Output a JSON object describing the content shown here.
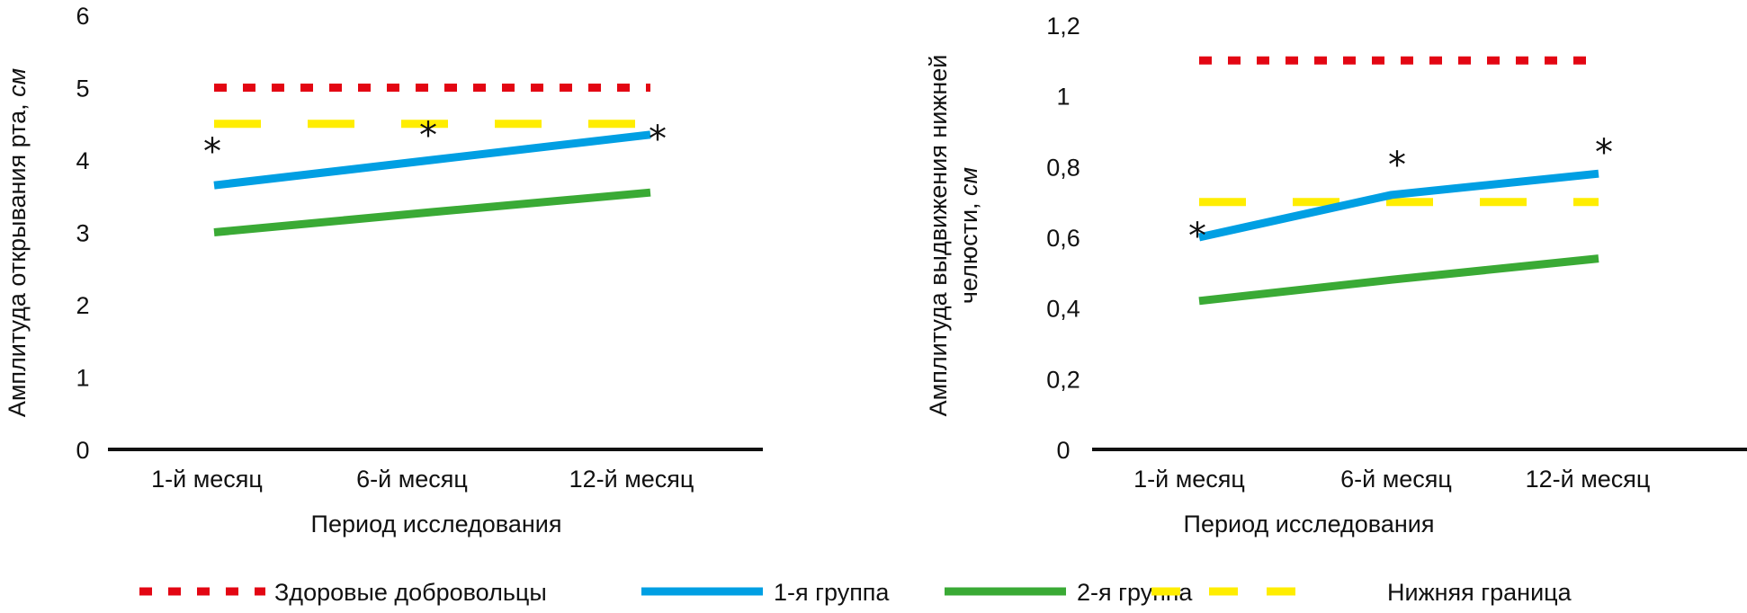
{
  "colors": {
    "healthy": "#e30613",
    "group1": "#009fe3",
    "group2": "#3aaa35",
    "lower": "#ffed00",
    "axis": "#111111"
  },
  "legend": {
    "position": "bottom",
    "items": [
      {
        "key": "healthy",
        "label": "Здоровые добровольцы",
        "style": "dotted"
      },
      {
        "key": "group1",
        "label": "1-я группа",
        "style": "solid"
      },
      {
        "key": "group2",
        "label": "2-я группа",
        "style": "solid"
      },
      {
        "key": "lower",
        "label": "Нижняя граница",
        "style": "dashed"
      }
    ]
  },
  "chart_data": [
    {
      "type": "line",
      "title": "",
      "xlabel": "Период исследования",
      "ylabel": "Амплитуда открывания рта, ",
      "ylabel_unit": "см",
      "categories": [
        "1-й месяц",
        "6-й месяц",
        "12-й месяц"
      ],
      "ylim": [
        0,
        6
      ],
      "yticks": [
        0,
        1,
        2,
        3,
        4,
        5,
        6
      ],
      "ytick_labels": [
        "0",
        "1",
        "2",
        "3",
        "4",
        "5",
        "6"
      ],
      "grid": false,
      "series": [
        {
          "key": "healthy",
          "name": "Здоровые добровольцы",
          "values": [
            5.0,
            5.0,
            5.0
          ]
        },
        {
          "key": "lower",
          "name": "Нижняя граница",
          "values": [
            4.5,
            4.5,
            4.5
          ]
        },
        {
          "key": "group1",
          "name": "1-я группа",
          "values": [
            3.65,
            4.0,
            4.35
          ]
        },
        {
          "key": "group2",
          "name": "2-я группа",
          "values": [
            3.0,
            3.28,
            3.55
          ]
        }
      ],
      "annotations": [
        {
          "text": "*",
          "category": "1-й месяц",
          "series": "group1"
        },
        {
          "text": "*",
          "category": "6-й месяц",
          "series": "group1"
        },
        {
          "text": "*",
          "category": "12-й месяц",
          "series": "group1"
        }
      ]
    },
    {
      "type": "line",
      "title": "",
      "xlabel": "Период исследования",
      "ylabel": "Амплитуда выдвижения нижней",
      "ylabel_line2": "челюсти, ",
      "ylabel_unit": "см",
      "categories": [
        "1-й месяц",
        "6-й месяц",
        "12-й месяц"
      ],
      "ylim": [
        0,
        1.2
      ],
      "yticks": [
        0,
        0.2,
        0.4,
        0.6,
        0.8,
        1.0,
        1.2
      ],
      "ytick_labels": [
        "0",
        "0,2",
        "0,4",
        "0,6",
        "0,8",
        "1",
        "1,2"
      ],
      "grid": false,
      "series": [
        {
          "key": "healthy",
          "name": "Здоровые добровольцы",
          "values": [
            1.1,
            1.1,
            1.1
          ]
        },
        {
          "key": "lower",
          "name": "Нижняя граница",
          "values": [
            0.7,
            0.7,
            0.7
          ]
        },
        {
          "key": "group1",
          "name": "1-я группа",
          "values": [
            0.6,
            0.72,
            0.78
          ]
        },
        {
          "key": "group2",
          "name": "2-я группа",
          "values": [
            0.42,
            0.48,
            0.54
          ]
        }
      ],
      "annotations": [
        {
          "text": "*",
          "category": "1-й месяц",
          "series": "group1"
        },
        {
          "text": "*",
          "category": "6-й месяц",
          "series": "group1"
        },
        {
          "text": "*",
          "category": "12-й месяц",
          "series": "group1"
        }
      ]
    }
  ]
}
